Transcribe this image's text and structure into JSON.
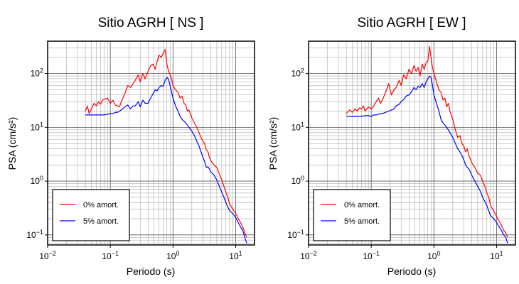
{
  "chart_data": [
    {
      "type": "line",
      "title": "Sitio AGRH [ NS ]",
      "xlabel": "Periodo (s)",
      "ylabel": "PSA (cm/s²)",
      "x_scale": "log",
      "y_scale": "log",
      "xlim": [
        0.01,
        20
      ],
      "ylim": [
        0.065,
        400
      ],
      "grid": true,
      "legend_position": "bottom-left",
      "x_ticks": [
        {
          "value": 0.01,
          "base": "10",
          "exp": "−2"
        },
        {
          "value": 0.1,
          "base": "10",
          "exp": "−1"
        },
        {
          "value": 1,
          "base": "10",
          "exp": "0"
        },
        {
          "value": 10,
          "base": "10",
          "exp": "1"
        }
      ],
      "y_ticks": [
        {
          "value": 0.1,
          "base": "10",
          "exp": "−1"
        },
        {
          "value": 1,
          "base": "10",
          "exp": "0"
        },
        {
          "value": 10,
          "base": "10",
          "exp": "1"
        },
        {
          "value": 100,
          "base": "10",
          "exp": "2"
        }
      ],
      "series": [
        {
          "name": "0% amort.",
          "color": "#ff0000",
          "x": [
            0.04,
            0.043,
            0.046,
            0.05,
            0.055,
            0.06,
            0.065,
            0.07,
            0.075,
            0.08,
            0.09,
            0.1,
            0.11,
            0.12,
            0.13,
            0.14,
            0.15,
            0.17,
            0.19,
            0.21,
            0.23,
            0.25,
            0.28,
            0.3,
            0.33,
            0.36,
            0.4,
            0.44,
            0.48,
            0.52,
            0.56,
            0.6,
            0.65,
            0.7,
            0.75,
            0.8,
            0.85,
            0.9,
            0.95,
            1.0,
            1.1,
            1.2,
            1.3,
            1.4,
            1.5,
            1.6,
            1.7,
            1.8,
            2.0,
            2.2,
            2.4,
            2.6,
            2.8,
            3.0,
            3.2,
            3.4,
            3.6,
            3.8,
            4.0,
            4.5,
            5.0,
            5.5,
            6.0,
            6.5,
            7.0,
            7.5,
            8.0,
            9.0,
            10.0,
            11.0,
            12.0,
            13.0,
            14.0,
            15.0
          ],
          "y": [
            20,
            25,
            18,
            22,
            28,
            25,
            30,
            27,
            32,
            33,
            35,
            28,
            32,
            26,
            25,
            24,
            30,
            42,
            60,
            55,
            65,
            75,
            95,
            70,
            100,
            80,
            110,
            140,
            150,
            120,
            170,
            220,
            200,
            240,
            280,
            150,
            110,
            95,
            80,
            60,
            50,
            45,
            35,
            38,
            28,
            26,
            20,
            21,
            15,
            12,
            10,
            8,
            6.5,
            5.5,
            5,
            3.8,
            3.6,
            2.8,
            2.4,
            2,
            1.8,
            1.35,
            1.05,
            0.8,
            0.62,
            0.5,
            0.38,
            0.3,
            0.25,
            0.2,
            0.17,
            0.14,
            0.11,
            0.09
          ]
        },
        {
          "name": "5% amort.",
          "color": "#0000ff",
          "x": [
            0.04,
            0.05,
            0.06,
            0.07,
            0.08,
            0.09,
            0.1,
            0.11,
            0.12,
            0.13,
            0.14,
            0.15,
            0.17,
            0.19,
            0.21,
            0.23,
            0.25,
            0.28,
            0.3,
            0.33,
            0.36,
            0.4,
            0.44,
            0.48,
            0.52,
            0.56,
            0.6,
            0.65,
            0.7,
            0.75,
            0.8,
            0.85,
            0.9,
            0.95,
            1.0,
            1.1,
            1.2,
            1.3,
            1.4,
            1.5,
            1.6,
            1.7,
            1.8,
            2.0,
            2.2,
            2.4,
            2.6,
            2.8,
            3.0,
            3.2,
            3.4,
            3.6,
            3.8,
            4.0,
            4.5,
            5.0,
            5.5,
            6.0,
            6.5,
            7.0,
            7.5,
            8.0,
            9.0,
            10.0,
            11.0,
            12.0,
            13.0,
            14.0,
            15.0
          ],
          "y": [
            17,
            17,
            17,
            17,
            17,
            17.5,
            18,
            18,
            19,
            19,
            20,
            21,
            24,
            26,
            22,
            25,
            25,
            30,
            24,
            32,
            28,
            28,
            35,
            42,
            50,
            48,
            55,
            60,
            58,
            75,
            85,
            78,
            60,
            45,
            35,
            25,
            20,
            16,
            14,
            13,
            12,
            11,
            10,
            8.5,
            7,
            5.5,
            4.5,
            3.5,
            2.8,
            2.3,
            1.8,
            1.85,
            1.7,
            1.5,
            1.3,
            1.05,
            0.8,
            0.62,
            0.5,
            0.4,
            0.33,
            0.28,
            0.25,
            0.21,
            0.17,
            0.14,
            0.12,
            0.09,
            0.07
          ]
        }
      ]
    },
    {
      "type": "line",
      "title": "Sitio AGRH [ EW ]",
      "xlabel": "Periodo (s)",
      "ylabel": "PSA (cm/s²)",
      "x_scale": "log",
      "y_scale": "log",
      "xlim": [
        0.01,
        20
      ],
      "ylim": [
        0.065,
        400
      ],
      "grid": true,
      "legend_position": "bottom-left",
      "x_ticks": [
        {
          "value": 0.01,
          "base": "10",
          "exp": "−2"
        },
        {
          "value": 0.1,
          "base": "10",
          "exp": "−1"
        },
        {
          "value": 1,
          "base": "10",
          "exp": "0"
        },
        {
          "value": 10,
          "base": "10",
          "exp": "1"
        }
      ],
      "y_ticks": [
        {
          "value": 0.1,
          "base": "10",
          "exp": "−1"
        },
        {
          "value": 1,
          "base": "10",
          "exp": "0"
        },
        {
          "value": 10,
          "base": "10",
          "exp": "1"
        },
        {
          "value": 100,
          "base": "10",
          "exp": "2"
        }
      ],
      "series": [
        {
          "name": "0% amort.",
          "color": "#ff0000",
          "x": [
            0.04,
            0.045,
            0.05,
            0.055,
            0.06,
            0.065,
            0.07,
            0.075,
            0.08,
            0.09,
            0.1,
            0.11,
            0.12,
            0.13,
            0.14,
            0.15,
            0.17,
            0.19,
            0.21,
            0.23,
            0.25,
            0.28,
            0.3,
            0.33,
            0.36,
            0.4,
            0.44,
            0.48,
            0.52,
            0.56,
            0.6,
            0.65,
            0.7,
            0.75,
            0.8,
            0.85,
            0.9,
            0.95,
            1.0,
            1.1,
            1.2,
            1.3,
            1.4,
            1.5,
            1.6,
            1.7,
            1.8,
            2.0,
            2.2,
            2.4,
            2.6,
            2.8,
            3.0,
            3.2,
            3.4,
            3.6,
            3.8,
            4.0,
            4.5,
            5.0,
            5.5,
            6.0,
            6.5,
            7.0,
            7.5,
            8.0,
            9.0,
            10.0,
            11.0,
            12.0,
            13.0,
            14.0,
            15.0
          ],
          "y": [
            18,
            21,
            19,
            22,
            20,
            23,
            22,
            25,
            20,
            24,
            22,
            25,
            30,
            35,
            28,
            32,
            45,
            65,
            40,
            50,
            55,
            75,
            60,
            95,
            80,
            120,
            100,
            140,
            110,
            130,
            90,
            150,
            120,
            160,
            170,
            320,
            200,
            130,
            100,
            70,
            50,
            45,
            32,
            35,
            24,
            28,
            20,
            14,
            9,
            6.5,
            7,
            5,
            4.5,
            3.5,
            4,
            3,
            2.6,
            2.2,
            1.8,
            1.4,
            1.3,
            1,
            0.8,
            0.6,
            0.5,
            0.35,
            0.28,
            0.22,
            0.18,
            0.15,
            0.12,
            0.11,
            0.09
          ]
        },
        {
          "name": "5% amort.",
          "color": "#0000ff",
          "x": [
            0.04,
            0.05,
            0.06,
            0.07,
            0.08,
            0.09,
            0.1,
            0.11,
            0.12,
            0.13,
            0.14,
            0.15,
            0.17,
            0.19,
            0.21,
            0.23,
            0.25,
            0.28,
            0.3,
            0.33,
            0.36,
            0.4,
            0.44,
            0.48,
            0.52,
            0.56,
            0.6,
            0.65,
            0.7,
            0.75,
            0.8,
            0.85,
            0.9,
            0.95,
            1.0,
            1.1,
            1.2,
            1.3,
            1.4,
            1.5,
            1.6,
            1.7,
            1.8,
            2.0,
            2.2,
            2.4,
            2.6,
            2.8,
            3.0,
            3.2,
            3.4,
            3.6,
            3.8,
            4.0,
            4.5,
            5.0,
            5.5,
            6.0,
            6.5,
            7.0,
            7.5,
            8.0,
            9.0,
            10.0,
            11.0,
            12.0,
            13.0,
            14.0,
            15.0
          ],
          "y": [
            16,
            16,
            16,
            16,
            16.5,
            16.5,
            16,
            17,
            17,
            17.5,
            18,
            18,
            19,
            20,
            21,
            22,
            25,
            27,
            30,
            33,
            38,
            40,
            46,
            55,
            50,
            58,
            55,
            65,
            55,
            70,
            80,
            90,
            85,
            60,
            40,
            28,
            20,
            14,
            12,
            11,
            10,
            9,
            8,
            6.5,
            5,
            4,
            3.5,
            3,
            2.5,
            2,
            1.8,
            1.7,
            1.5,
            1.3,
            1,
            0.8,
            0.65,
            0.5,
            0.42,
            0.35,
            0.28,
            0.23,
            0.2,
            0.17,
            0.14,
            0.12,
            0.1,
            0.09,
            0.07
          ]
        }
      ]
    }
  ]
}
